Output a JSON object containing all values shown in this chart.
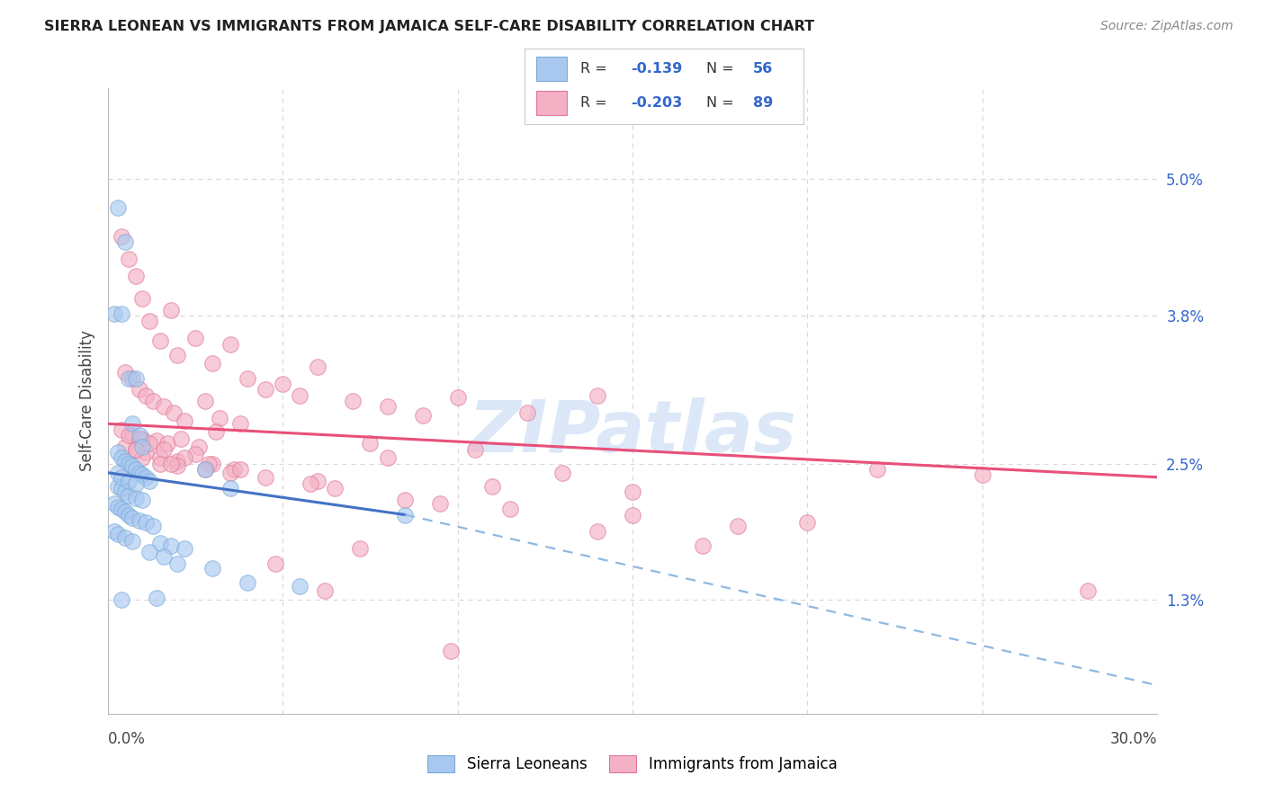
{
  "title": "SIERRA LEONEAN VS IMMIGRANTS FROM JAMAICA SELF-CARE DISABILITY CORRELATION CHART",
  "source": "Source: ZipAtlas.com",
  "ylabel": "Self-Care Disability",
  "right_ytick_vals": [
    1.3,
    2.5,
    3.8,
    5.0
  ],
  "right_ytick_labels": [
    "1.3%",
    "2.5%",
    "3.8%",
    "5.0%"
  ],
  "xmin": 0.0,
  "xmax": 30.0,
  "ymin": 0.3,
  "ymax": 5.8,
  "series1_label": "Sierra Leoneans",
  "series1_color": "#a8c8f0",
  "series1_edge": "#7aaad8",
  "series1_line_color": "#4472c4",
  "series2_label": "Immigrants from Jamaica",
  "series2_color": "#f4b0c4",
  "series2_edge": "#e07898",
  "series2_line_color": "#e8507a",
  "legend_text_color": "#3366cc",
  "watermark_color": "#dce8f8",
  "grid_color": "#d8d8d8",
  "blue_line_x_start": 0.0,
  "blue_line_x_solid_end": 8.5,
  "blue_line_x_dashed_end": 30.0,
  "blue_line_y_start": 2.42,
  "blue_line_y_at_solid_end": 2.05,
  "blue_line_y_at_dashed_end": 0.55,
  "pink_line_x_start": 0.0,
  "pink_line_x_end": 30.0,
  "pink_line_y_start": 2.85,
  "pink_line_y_end": 2.38,
  "blue_x": [
    0.3,
    0.5,
    0.2,
    0.4,
    0.6,
    0.8,
    0.7,
    0.9,
    1.0,
    0.3,
    0.4,
    0.5,
    0.6,
    0.7,
    0.8,
    0.9,
    1.0,
    1.1,
    1.2,
    0.3,
    0.4,
    0.5,
    0.6,
    0.8,
    1.0,
    0.2,
    0.3,
    0.4,
    0.5,
    0.6,
    0.7,
    0.9,
    1.1,
    1.3,
    0.2,
    0.3,
    0.5,
    0.7,
    1.5,
    1.8,
    2.2,
    2.8,
    0.3,
    0.4,
    0.6,
    0.8,
    3.5,
    8.5,
    1.2,
    1.6,
    2.0,
    3.0,
    4.0,
    5.5,
    1.4,
    0.4
  ],
  "blue_y": [
    4.75,
    4.45,
    3.82,
    3.82,
    3.25,
    3.25,
    2.85,
    2.75,
    2.65,
    2.6,
    2.55,
    2.52,
    2.5,
    2.48,
    2.45,
    2.42,
    2.4,
    2.38,
    2.35,
    2.3,
    2.28,
    2.25,
    2.22,
    2.2,
    2.18,
    2.15,
    2.12,
    2.1,
    2.08,
    2.05,
    2.02,
    2.0,
    1.98,
    1.95,
    1.9,
    1.88,
    1.85,
    1.82,
    1.8,
    1.78,
    1.75,
    2.45,
    2.42,
    2.38,
    2.35,
    2.32,
    2.28,
    2.05,
    1.72,
    1.68,
    1.62,
    1.58,
    1.45,
    1.42,
    1.32,
    1.3
  ],
  "pink_x": [
    0.4,
    0.6,
    0.8,
    1.0,
    1.2,
    1.5,
    1.8,
    2.0,
    2.5,
    3.0,
    3.5,
    4.0,
    4.5,
    5.0,
    5.5,
    6.0,
    7.0,
    8.0,
    9.0,
    10.0,
    12.0,
    14.0,
    0.5,
    0.7,
    0.9,
    1.1,
    1.3,
    1.6,
    1.9,
    2.2,
    2.8,
    3.2,
    3.8,
    0.4,
    0.7,
    1.0,
    1.4,
    1.7,
    2.1,
    2.6,
    3.1,
    0.5,
    0.8,
    1.1,
    1.5,
    2.0,
    2.5,
    3.0,
    0.6,
    0.9,
    1.2,
    1.6,
    2.2,
    2.9,
    3.6,
    1.0,
    1.5,
    2.0,
    2.8,
    3.5,
    4.5,
    6.0,
    8.0,
    11.0,
    15.0,
    22.0,
    7.5,
    10.5,
    13.0,
    0.8,
    1.8,
    3.8,
    5.8,
    8.5,
    11.5,
    15.0,
    20.0,
    25.0,
    6.5,
    9.5,
    18.0,
    28.0,
    14.0,
    7.2,
    4.8,
    17.0,
    9.8,
    6.2
  ],
  "pink_y": [
    4.5,
    4.3,
    4.15,
    3.95,
    3.75,
    3.58,
    3.85,
    3.45,
    3.6,
    3.38,
    3.55,
    3.25,
    3.15,
    3.2,
    3.1,
    3.35,
    3.05,
    3.0,
    2.92,
    3.08,
    2.95,
    3.1,
    3.3,
    3.25,
    3.15,
    3.1,
    3.05,
    3.0,
    2.95,
    2.88,
    3.05,
    2.9,
    2.85,
    2.8,
    2.75,
    2.72,
    2.7,
    2.68,
    2.72,
    2.65,
    2.78,
    2.65,
    2.62,
    2.6,
    2.55,
    2.52,
    2.58,
    2.5,
    2.75,
    2.72,
    2.68,
    2.62,
    2.55,
    2.5,
    2.45,
    2.55,
    2.5,
    2.48,
    2.45,
    2.42,
    2.38,
    2.35,
    2.55,
    2.3,
    2.25,
    2.45,
    2.68,
    2.62,
    2.42,
    2.62,
    2.5,
    2.45,
    2.32,
    2.18,
    2.1,
    2.05,
    1.98,
    2.4,
    2.28,
    2.15,
    1.95,
    1.38,
    1.9,
    1.75,
    1.62,
    1.78,
    0.85,
    1.38
  ]
}
